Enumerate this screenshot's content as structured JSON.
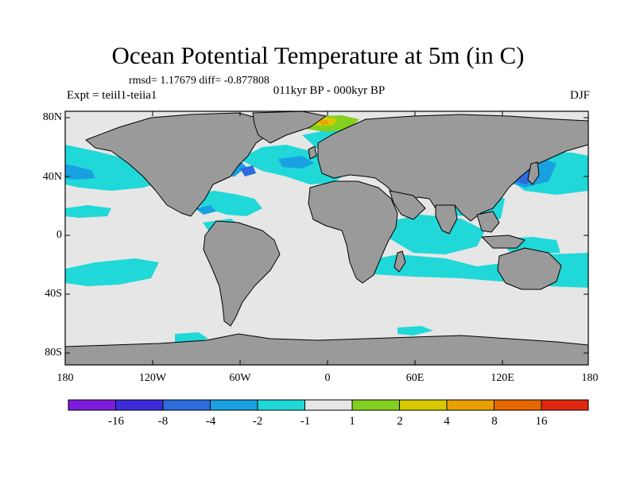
{
  "title": "Ocean Potential Temperature at 5m (in C)",
  "stats": "rmsd= 1.17679 diff= -0.877808",
  "experiment": "Expt = teiil1-teiia1",
  "period": "011kyr BP - 000kyr BP",
  "season": "DJF",
  "lat_ticks": [
    "80N",
    "40N",
    "0",
    "40S",
    "80S"
  ],
  "lon_ticks": [
    "180",
    "120W",
    "60W",
    "0",
    "60E",
    "120E",
    "180"
  ],
  "colorbar": {
    "labels": [
      "-16",
      "-8",
      "-4",
      "-2",
      "-1",
      "1",
      "2",
      "4",
      "8",
      "16"
    ],
    "colors": [
      "#7e1cdc",
      "#3c2cd8",
      "#2c6cdc",
      "#18a0e0",
      "#20d8d8",
      "#e6e6e6",
      "#84d020",
      "#d8c800",
      "#e8a000",
      "#e86800",
      "#e02810"
    ]
  },
  "map_colors": {
    "land": "#9a9a9a",
    "ocean_neutral": "#e6e6e6",
    "cool_1": "#20d8d8",
    "cool_2": "#18a0e0",
    "cool_4": "#2c6cdc",
    "warm_1": "#84d020",
    "warm_2": "#d8c800",
    "warm_4": "#e8a000"
  }
}
